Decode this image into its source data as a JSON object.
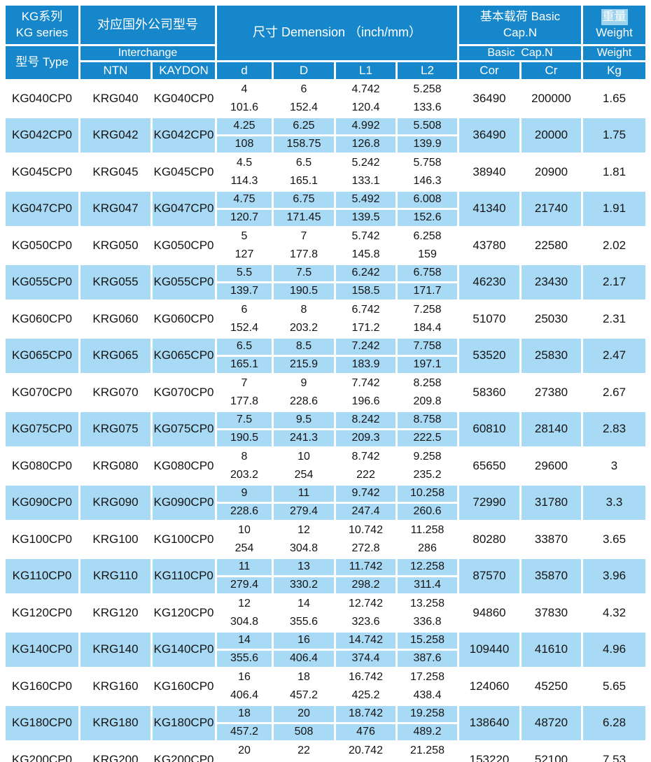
{
  "header": {
    "series_zh": "KG系列",
    "series_en": "KG series",
    "type_label": "型号 Type",
    "interchange_zh": "对应国外公司型号",
    "interchange_en": "Interchange",
    "ntn": "NTN",
    "kaydon": "KAYDON",
    "dimension": "尺寸 Demension （inch/mm）",
    "d": "d",
    "D": "D",
    "l1": "L1",
    "l2": "L2",
    "basic_top_line1": "基本载荷 Basic",
    "basic_top_line2": "Cap.N",
    "basic_mid": "Basic  Cap.N",
    "weight_zh": "重量",
    "weight_en": "Weight",
    "weight_mid": "Weight",
    "cor": "Cor",
    "cr": "Cr",
    "kg": "Kg"
  },
  "colors": {
    "header_blue": "#1587ca",
    "row_alt_blue": "#a9daf5",
    "row_white": "#ffffff",
    "weight_highlight": "#9ed3ee",
    "text": "#131313"
  },
  "rows": [
    {
      "type": "KG040CP0",
      "ntn": "KRG040",
      "kaydon": "KG040CP0",
      "d_in": "4",
      "d_mm": "101.6",
      "D_in": "6",
      "D_mm": "152.4",
      "l1_in": "4.742",
      "l1_mm": "120.4",
      "l2_in": "5.258",
      "l2_mm": "133.6",
      "cor": "36490",
      "cr": "200000",
      "kg": "1.65"
    },
    {
      "type": "KG042CP0",
      "ntn": "KRG042",
      "kaydon": "KG042CP0",
      "d_in": "4.25",
      "d_mm": "108",
      "D_in": "6.25",
      "D_mm": "158.75",
      "l1_in": "4.992",
      "l1_mm": "126.8",
      "l2_in": "5.508",
      "l2_mm": "139.9",
      "cor": "36490",
      "cr": "20000",
      "kg": "1.75"
    },
    {
      "type": "KG045CP0",
      "ntn": "KRG045",
      "kaydon": "KG045CP0",
      "d_in": "4.5",
      "d_mm": "114.3",
      "D_in": "6.5",
      "D_mm": "165.1",
      "l1_in": "5.242",
      "l1_mm": "133.1",
      "l2_in": "5.758",
      "l2_mm": "146.3",
      "cor": "38940",
      "cr": "20900",
      "kg": "1.81"
    },
    {
      "type": "KG047CP0",
      "ntn": "KRG047",
      "kaydon": "KG047CP0",
      "d_in": "4.75",
      "d_mm": "120.7",
      "D_in": "6.75",
      "D_mm": "171.45",
      "l1_in": "5.492",
      "l1_mm": "139.5",
      "l2_in": "6.008",
      "l2_mm": "152.6",
      "cor": "41340",
      "cr": "21740",
      "kg": "1.91"
    },
    {
      "type": "KG050CP0",
      "ntn": "KRG050",
      "kaydon": "KG050CP0",
      "d_in": "5",
      "d_mm": "127",
      "D_in": "7",
      "D_mm": "177.8",
      "l1_in": "5.742",
      "l1_mm": "145.8",
      "l2_in": "6.258",
      "l2_mm": "159",
      "cor": "43780",
      "cr": "22580",
      "kg": "2.02"
    },
    {
      "type": "KG055CP0",
      "ntn": "KRG055",
      "kaydon": "KG055CP0",
      "d_in": "5.5",
      "d_mm": "139.7",
      "D_in": "7.5",
      "D_mm": "190.5",
      "l1_in": "6.242",
      "l1_mm": "158.5",
      "l2_in": "6.758",
      "l2_mm": "171.7",
      "cor": "46230",
      "cr": "23430",
      "kg": "2.17"
    },
    {
      "type": "KG060CP0",
      "ntn": "KRG060",
      "kaydon": "KG060CP0",
      "d_in": "6",
      "d_mm": "152.4",
      "D_in": "8",
      "D_mm": "203.2",
      "l1_in": "6.742",
      "l1_mm": "171.2",
      "l2_in": "7.258",
      "l2_mm": "184.4",
      "cor": "51070",
      "cr": "25030",
      "kg": "2.31"
    },
    {
      "type": "KG065CP0",
      "ntn": "KRG065",
      "kaydon": "KG065CP0",
      "d_in": "6.5",
      "d_mm": "165.1",
      "D_in": "8.5",
      "D_mm": "215.9",
      "l1_in": "7.242",
      "l1_mm": "183.9",
      "l2_in": "7.758",
      "l2_mm": "197.1",
      "cor": "53520",
      "cr": "25830",
      "kg": "2.47"
    },
    {
      "type": "KG070CP0",
      "ntn": "KRG070",
      "kaydon": "KG070CP0",
      "d_in": "7",
      "d_mm": "177.8",
      "D_in": "9",
      "D_mm": "228.6",
      "l1_in": "7.742",
      "l1_mm": "196.6",
      "l2_in": "8.258",
      "l2_mm": "209.8",
      "cor": "58360",
      "cr": "27380",
      "kg": "2.67"
    },
    {
      "type": "KG075CP0",
      "ntn": "KRG075",
      "kaydon": "KG075CP0",
      "d_in": "7.5",
      "d_mm": "190.5",
      "D_in": "9.5",
      "D_mm": "241.3",
      "l1_in": "8.242",
      "l1_mm": "209.3",
      "l2_in": "8.758",
      "l2_mm": "222.5",
      "cor": "60810",
      "cr": "28140",
      "kg": "2.83"
    },
    {
      "type": "KG080CP0",
      "ntn": "KRG080",
      "kaydon": "KG080CP0",
      "d_in": "8",
      "d_mm": "203.2",
      "D_in": "10",
      "D_mm": "254",
      "l1_in": "8.742",
      "l1_mm": "222",
      "l2_in": "9.258",
      "l2_mm": "235.2",
      "cor": "65650",
      "cr": "29600",
      "kg": "3"
    },
    {
      "type": "KG090CP0",
      "ntn": "KRG090",
      "kaydon": "KG090CP0",
      "d_in": "9",
      "d_mm": "228.6",
      "D_in": "11",
      "D_mm": "279.4",
      "l1_in": "9.742",
      "l1_mm": "247.4",
      "l2_in": "10.258",
      "l2_mm": "260.6",
      "cor": "72990",
      "cr": "31780",
      "kg": "3.3"
    },
    {
      "type": "KG100CP0",
      "ntn": "KRG100",
      "kaydon": "KG100CP0",
      "d_in": "10",
      "d_mm": "254",
      "D_in": "12",
      "D_mm": "304.8",
      "l1_in": "10.742",
      "l1_mm": "272.8",
      "l2_in": "11.258",
      "l2_mm": "286",
      "cor": "80280",
      "cr": "33870",
      "kg": "3.65"
    },
    {
      "type": "KG110CP0",
      "ntn": "KRG110",
      "kaydon": "KG110CP0",
      "d_in": "11",
      "d_mm": "279.4",
      "D_in": "13",
      "D_mm": "330.2",
      "l1_in": "11.742",
      "l1_mm": "298.2",
      "l2_in": "12.258",
      "l2_mm": "311.4",
      "cor": "87570",
      "cr": "35870",
      "kg": "3.96"
    },
    {
      "type": "KG120CP0",
      "ntn": "KRG120",
      "kaydon": "KG120CP0",
      "d_in": "12",
      "d_mm": "304.8",
      "D_in": "14",
      "D_mm": "355.6",
      "l1_in": "12.742",
      "l1_mm": "323.6",
      "l2_in": "13.258",
      "l2_mm": "336.8",
      "cor": "94860",
      "cr": "37830",
      "kg": "4.32"
    },
    {
      "type": "KG140CP0",
      "ntn": "KRG140",
      "kaydon": "KG140CP0",
      "d_in": "14",
      "d_mm": "355.6",
      "D_in": "16",
      "D_mm": "406.4",
      "l1_in": "14.742",
      "l1_mm": "374.4",
      "l2_in": "15.258",
      "l2_mm": "387.6",
      "cor": "109440",
      "cr": "41610",
      "kg": "4.96"
    },
    {
      "type": "KG160CP0",
      "ntn": "KRG160",
      "kaydon": "KG160CP0",
      "d_in": "16",
      "d_mm": "406.4",
      "D_in": "18",
      "D_mm": "457.2",
      "l1_in": "16.742",
      "l1_mm": "425.2",
      "l2_in": "17.258",
      "l2_mm": "438.4",
      "cor": "124060",
      "cr": "45250",
      "kg": "5.65"
    },
    {
      "type": "KG180CP0",
      "ntn": "KRG180",
      "kaydon": "KG180CP0",
      "d_in": "18",
      "d_mm": "457.2",
      "D_in": "20",
      "D_mm": "508",
      "l1_in": "18.742",
      "l1_mm": "476",
      "l2_in": "19.258",
      "l2_mm": "489.2",
      "cor": "138640",
      "cr": "48720",
      "kg": "6.28"
    },
    {
      "type": "KG200CP0",
      "ntn": "KRG200",
      "kaydon": "KG200CP0",
      "d_in": "20",
      "d_mm": "",
      "D_in": "22",
      "D_mm": "",
      "l1_in": "20.742",
      "l1_mm": "",
      "l2_in": "21.258",
      "l2_mm": "",
      "cor": "153220",
      "cr": "52100",
      "kg": "7.53"
    }
  ]
}
